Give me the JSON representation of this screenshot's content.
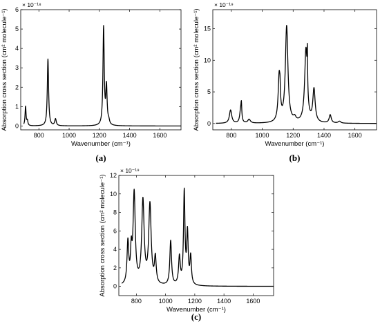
{
  "chart_data": [
    {
      "type": "line",
      "caption": "(a)",
      "title": "",
      "xlabel": "Wavenumber (cm⁻¹)",
      "ylabel": "Absorption cross section (cm² molecule⁻¹)",
      "exponent_label": "× 10⁻¹⁸",
      "xlim": [
        680,
        1740
      ],
      "ylim": [
        -0.2,
        6
      ],
      "xticks": [
        800,
        1000,
        1200,
        1400,
        1600
      ],
      "yticks": [
        0,
        1,
        2,
        3,
        4,
        5,
        6
      ],
      "grid": false,
      "baseline": 0,
      "peaks": [
        {
          "center": 712,
          "height": 1.0,
          "width": 4
        },
        {
          "center": 724,
          "height": 0.25,
          "width": 4
        },
        {
          "center": 860,
          "height": 3.45,
          "width": 5
        },
        {
          "center": 910,
          "height": 0.35,
          "width": 6
        },
        {
          "center": 1228,
          "height": 5.05,
          "width": 5
        },
        {
          "center": 1247,
          "height": 1.95,
          "width": 5
        },
        {
          "center": 1262,
          "height": 0.2,
          "width": 6
        }
      ]
    },
    {
      "type": "line",
      "caption": "(b)",
      "title": "",
      "xlabel": "Wavenumber (cm⁻¹)",
      "ylabel": "Absorption cross section (cm² molecule⁻¹)",
      "exponent_label": "× 10⁻¹⁹",
      "xlim": [
        680,
        1740
      ],
      "ylim": [
        -1,
        18
      ],
      "xticks": [
        800,
        1000,
        1200,
        1400,
        1600
      ],
      "yticks": [
        0,
        5,
        10,
        15
      ],
      "grid": false,
      "baseline": 0,
      "peaks": [
        {
          "center": 795,
          "height": 2.1,
          "width": 9
        },
        {
          "center": 860,
          "height": 2.0,
          "width": 7
        },
        {
          "center": 865,
          "height": 2.2,
          "width": 3
        },
        {
          "center": 915,
          "height": 0.6,
          "width": 10
        },
        {
          "center": 1110,
          "height": 7.5,
          "width": 8
        },
        {
          "center": 1115,
          "height": 1.5,
          "width": 2
        },
        {
          "center": 1158,
          "height": 15.2,
          "width": 10
        },
        {
          "center": 1210,
          "height": 0.6,
          "width": 10
        },
        {
          "center": 1283,
          "height": 11.5,
          "width": 10
        },
        {
          "center": 1292,
          "height": 6.0,
          "width": 2
        },
        {
          "center": 1335,
          "height": 5.2,
          "width": 9
        },
        {
          "center": 1440,
          "height": 1.3,
          "width": 8
        },
        {
          "center": 1500,
          "height": 0.3,
          "width": 10
        }
      ]
    },
    {
      "type": "line",
      "caption": "(c)",
      "title": "",
      "xlabel": "Wavenumber (cm⁻¹)",
      "ylabel": "Absorption cross section (cm² molecule⁻¹)",
      "exponent_label": "× 10⁻¹⁹",
      "xlim": [
        680,
        1740
      ],
      "ylim": [
        -1,
        12
      ],
      "xticks": [
        800,
        1000,
        1200,
        1400,
        1600
      ],
      "yticks": [
        0,
        2,
        4,
        6,
        8,
        10,
        12
      ],
      "grid": false,
      "baseline": 0,
      "peaks": [
        {
          "center": 742,
          "height": 4.5,
          "width": 7
        },
        {
          "center": 765,
          "height": 3.2,
          "width": 6
        },
        {
          "center": 785,
          "height": 9.8,
          "width": 9
        },
        {
          "center": 845,
          "height": 9.0,
          "width": 10
        },
        {
          "center": 893,
          "height": 8.6,
          "width": 10
        },
        {
          "center": 930,
          "height": 2.8,
          "width": 7
        },
        {
          "center": 1035,
          "height": 4.8,
          "width": 7
        },
        {
          "center": 1095,
          "height": 3.0,
          "width": 7
        },
        {
          "center": 1128,
          "height": 10.0,
          "width": 6
        },
        {
          "center": 1150,
          "height": 5.5,
          "width": 6
        },
        {
          "center": 1172,
          "height": 3.0,
          "width": 6
        }
      ]
    }
  ]
}
